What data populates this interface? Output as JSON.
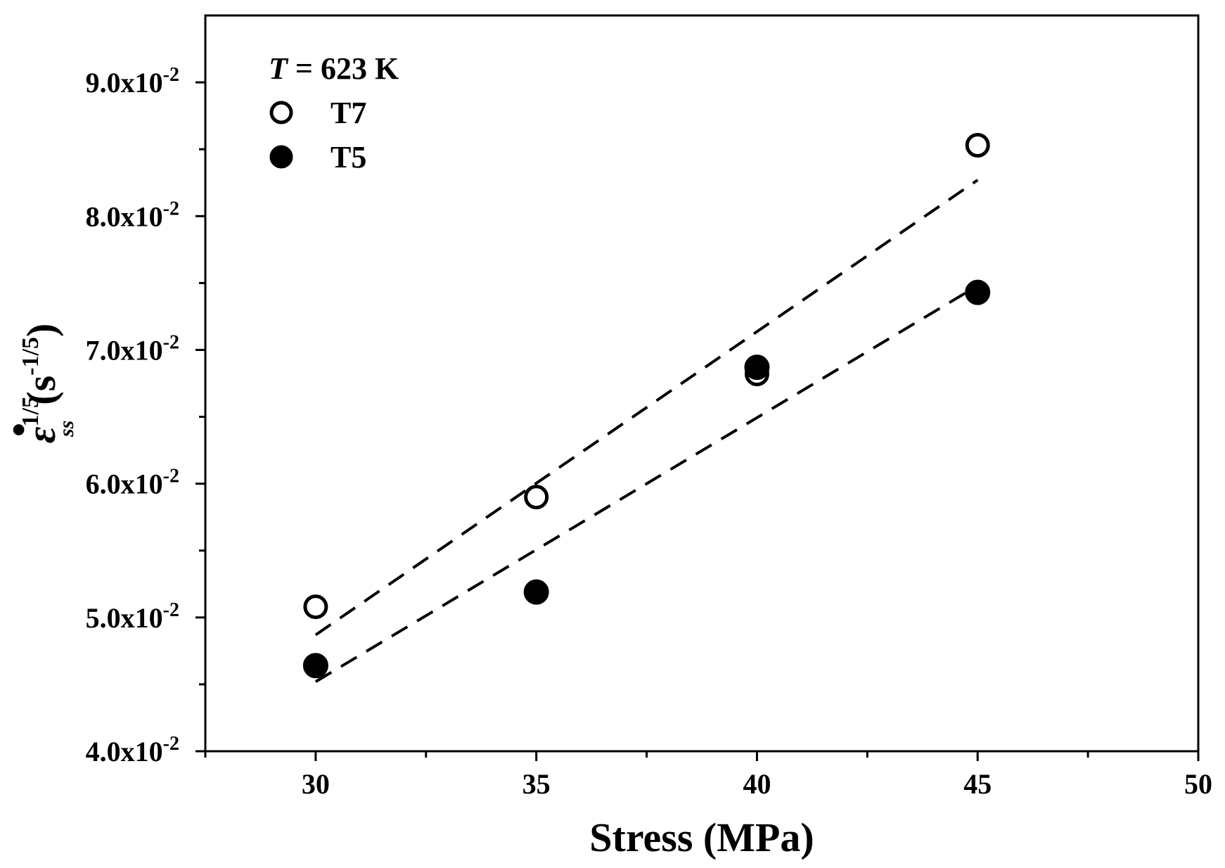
{
  "chart_data": {
    "type": "scatter",
    "title": "",
    "xlabel": "Stress (MPa)",
    "ylabel": {
      "symbol": "ε",
      "dot": "•",
      "superscript": "1/5",
      "subscript": "ss",
      "unit_open": "(s",
      "unit_superscript": "-1/5",
      "unit_close": ")"
    },
    "xlim": [
      27.5,
      50
    ],
    "ylim": [
      0.04,
      0.095
    ],
    "x_ticks": [
      {
        "value": 30,
        "label": "30"
      },
      {
        "value": 35,
        "label": "35"
      },
      {
        "value": 40,
        "label": "40"
      },
      {
        "value": 45,
        "label": "45"
      },
      {
        "value": 50,
        "label": "50"
      }
    ],
    "x_minor_ticks": [
      27.5,
      32.5,
      37.5,
      42.5,
      47.5
    ],
    "y_ticks": [
      {
        "value": 0.04,
        "mantissa": "4.0x10",
        "exponent": "-2"
      },
      {
        "value": 0.05,
        "mantissa": "5.0x10",
        "exponent": "-2"
      },
      {
        "value": 0.06,
        "mantissa": "6.0x10",
        "exponent": "-2"
      },
      {
        "value": 0.07,
        "mantissa": "7.0x10",
        "exponent": "-2"
      },
      {
        "value": 0.08,
        "mantissa": "8.0x10",
        "exponent": "-2"
      },
      {
        "value": 0.09,
        "mantissa": "9.0x10",
        "exponent": "-2"
      }
    ],
    "y_minor_ticks": [
      0.045,
      0.055,
      0.065,
      0.075,
      0.085
    ],
    "legend": {
      "placement": "top-left",
      "title_italic": "T",
      "title_rest": " = 623 K"
    },
    "series": [
      {
        "name": "T7",
        "marker": "open-circle",
        "x": [
          30,
          35,
          40,
          45
        ],
        "y": [
          0.0508,
          0.059,
          0.0682,
          0.0853
        ],
        "fit": {
          "x": [
            30,
            45
          ],
          "y": [
            0.0487,
            0.0827
          ]
        }
      },
      {
        "name": "T5",
        "marker": "filled-circle",
        "x": [
          30,
          35,
          40,
          45
        ],
        "y": [
          0.0464,
          0.0519,
          0.0687,
          0.0743
        ],
        "fit": {
          "x": [
            30,
            45
          ],
          "y": [
            0.0452,
            0.0748
          ]
        }
      }
    ]
  }
}
